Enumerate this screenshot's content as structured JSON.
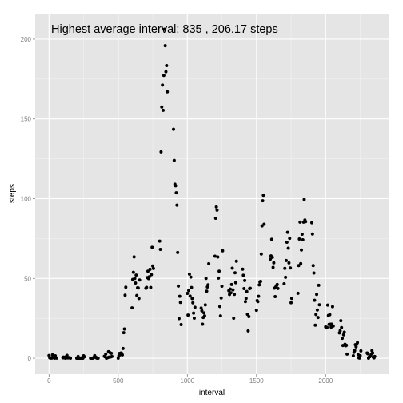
{
  "chart_data": {
    "type": "scatter",
    "xlabel": "interval",
    "ylabel": "steps",
    "annotation": "Highest average interval: 835 , 206.17  steps",
    "xlim": [
      -100,
      2455
    ],
    "ylim": [
      -10,
      216
    ],
    "x_ticks": [
      0,
      500,
      1000,
      1500,
      2000
    ],
    "x_tick_labels": [
      "0",
      "500",
      "1000",
      "1500",
      "2000"
    ],
    "x_minor_ticks": [
      250,
      750,
      1250,
      1750,
      2250
    ],
    "y_ticks": [
      0,
      50,
      100,
      150,
      200
    ],
    "y_tick_labels": [
      "0",
      "50",
      "100",
      "150",
      "200"
    ],
    "y_minor_ticks": [
      25,
      75,
      125,
      175
    ],
    "grid": true,
    "colors": {
      "panel": "#e5e5e5",
      "grid_major": "#ffffff",
      "grid_minor": "#f2f2f2",
      "point": "#000000"
    },
    "points": [
      [
        0,
        1.7
      ],
      [
        5,
        0.3
      ],
      [
        10,
        0.1
      ],
      [
        15,
        0.2
      ],
      [
        20,
        0.1
      ],
      [
        25,
        2.1
      ],
      [
        30,
        0.5
      ],
      [
        35,
        0.9
      ],
      [
        40,
        0
      ],
      [
        45,
        1.5
      ],
      [
        50,
        0.3
      ],
      [
        55,
        0.1
      ],
      [
        100,
        0.3
      ],
      [
        105,
        0.7
      ],
      [
        110,
        0.2
      ],
      [
        115,
        0.3
      ],
      [
        120,
        0
      ],
      [
        125,
        1.1
      ],
      [
        130,
        1.8
      ],
      [
        135,
        0.2
      ],
      [
        140,
        0.2
      ],
      [
        145,
        0.4
      ],
      [
        150,
        0.3
      ],
      [
        155,
        0
      ],
      [
        200,
        0
      ],
      [
        205,
        0
      ],
      [
        210,
        1.1
      ],
      [
        215,
        0
      ],
      [
        220,
        0
      ],
      [
        225,
        0.1
      ],
      [
        230,
        0
      ],
      [
        235,
        0.2
      ],
      [
        240,
        0
      ],
      [
        245,
        0
      ],
      [
        250,
        1.5
      ],
      [
        255,
        0.9
      ],
      [
        300,
        0
      ],
      [
        305,
        0
      ],
      [
        310,
        0
      ],
      [
        315,
        0
      ],
      [
        320,
        0.2
      ],
      [
        325,
        0.6
      ],
      [
        330,
        1.6
      ],
      [
        335,
        0.6
      ],
      [
        340,
        0.5
      ],
      [
        345,
        0.1
      ],
      [
        350,
        0
      ],
      [
        355,
        0
      ],
      [
        400,
        1.2
      ],
      [
        405,
        0.9
      ],
      [
        410,
        2.6
      ],
      [
        415,
        0
      ],
      [
        420,
        0.3
      ],
      [
        425,
        0.4
      ],
      [
        430,
        4.1
      ],
      [
        435,
        0.7
      ],
      [
        440,
        3.5
      ],
      [
        445,
        0.8
      ],
      [
        450,
        3.1
      ],
      [
        455,
        1.1
      ],
      [
        500,
        0
      ],
      [
        505,
        1.5
      ],
      [
        510,
        3
      ],
      [
        515,
        2.2
      ],
      [
        520,
        3.3
      ],
      [
        525,
        3
      ],
      [
        530,
        2.1
      ],
      [
        535,
        6.1
      ],
      [
        540,
        16
      ],
      [
        545,
        18.3
      ],
      [
        550,
        39.5
      ],
      [
        555,
        44.5
      ],
      [
        600,
        31.5
      ],
      [
        605,
        49.3
      ],
      [
        610,
        53.8
      ],
      [
        615,
        63.5
      ],
      [
        620,
        50
      ],
      [
        625,
        47.1
      ],
      [
        630,
        52.1
      ],
      [
        635,
        39.3
      ],
      [
        640,
        44.1
      ],
      [
        645,
        44
      ],
      [
        650,
        37.4
      ],
      [
        655,
        49
      ],
      [
        700,
        43.8
      ],
      [
        705,
        44.4
      ],
      [
        710,
        50.5
      ],
      [
        715,
        54.5
      ],
      [
        720,
        49.9
      ],
      [
        725,
        51
      ],
      [
        730,
        55.7
      ],
      [
        735,
        44.3
      ],
      [
        740,
        52.3
      ],
      [
        745,
        69.5
      ],
      [
        750,
        57.8
      ],
      [
        755,
        56.2
      ],
      [
        800,
        73.4
      ],
      [
        805,
        68.2
      ],
      [
        810,
        129.4
      ],
      [
        815,
        157.5
      ],
      [
        820,
        171.2
      ],
      [
        825,
        155.4
      ],
      [
        830,
        177.3
      ],
      [
        835,
        206.2
      ],
      [
        840,
        195.9
      ],
      [
        845,
        179.6
      ],
      [
        850,
        183.4
      ],
      [
        855,
        167
      ],
      [
        900,
        143.5
      ],
      [
        905,
        124
      ],
      [
        910,
        109.1
      ],
      [
        915,
        108.1
      ],
      [
        920,
        103.7
      ],
      [
        925,
        95.9
      ],
      [
        930,
        66.2
      ],
      [
        935,
        45.2
      ],
      [
        940,
        24.8
      ],
      [
        945,
        38.8
      ],
      [
        950,
        34.98
      ],
      [
        955,
        21.1
      ],
      [
        1000,
        40.6
      ],
      [
        1005,
        27
      ],
      [
        1010,
        42.4
      ],
      [
        1015,
        52.7
      ],
      [
        1020,
        38.9
      ],
      [
        1025,
        50.8
      ],
      [
        1030,
        44.3
      ],
      [
        1035,
        37.4
      ],
      [
        1040,
        34.7
      ],
      [
        1045,
        28.3
      ],
      [
        1050,
        25.1
      ],
      [
        1055,
        31.9
      ],
      [
        1100,
        31.4
      ],
      [
        1105,
        29.7
      ],
      [
        1110,
        21.3
      ],
      [
        1115,
        25.5
      ],
      [
        1120,
        28.4
      ],
      [
        1125,
        26.5
      ],
      [
        1130,
        33.4
      ],
      [
        1135,
        49.98
      ],
      [
        1140,
        42
      ],
      [
        1145,
        44.6
      ],
      [
        1150,
        46
      ],
      [
        1155,
        59.2
      ],
      [
        1200,
        63.9
      ],
      [
        1205,
        87.7
      ],
      [
        1210,
        94.8
      ],
      [
        1215,
        92.8
      ],
      [
        1220,
        63.4
      ],
      [
        1225,
        50.2
      ],
      [
        1230,
        54.5
      ],
      [
        1235,
        32.4
      ],
      [
        1240,
        26.5
      ],
      [
        1245,
        37.7
      ],
      [
        1250,
        45.1
      ],
      [
        1255,
        67.3
      ],
      [
        1300,
        42.3
      ],
      [
        1305,
        39.9
      ],
      [
        1310,
        43.3
      ],
      [
        1315,
        40.98
      ],
      [
        1320,
        46.2
      ],
      [
        1325,
        56.4
      ],
      [
        1330,
        42.8
      ],
      [
        1335,
        25.1
      ],
      [
        1340,
        39.97
      ],
      [
        1345,
        53.5
      ],
      [
        1350,
        47.3
      ],
      [
        1355,
        60.8
      ],
      [
        1400,
        55.8
      ],
      [
        1405,
        51.96
      ],
      [
        1410,
        43.6
      ],
      [
        1415,
        48.7
      ],
      [
        1420,
        35.5
      ],
      [
        1425,
        37.5
      ],
      [
        1430,
        41.8
      ],
      [
        1435,
        27.5
      ],
      [
        1440,
        17.1
      ],
      [
        1445,
        26.1
      ],
      [
        1450,
        43.6
      ],
      [
        1455,
        43.8
      ],
      [
        1500,
        30
      ],
      [
        1505,
        36.1
      ],
      [
        1510,
        35.5
      ],
      [
        1515,
        38.8
      ],
      [
        1520,
        45.96
      ],
      [
        1525,
        47.8
      ],
      [
        1530,
        48.1
      ],
      [
        1535,
        65.3
      ],
      [
        1540,
        82.9
      ],
      [
        1545,
        98.7
      ],
      [
        1550,
        102.1
      ],
      [
        1555,
        83.96
      ],
      [
        1600,
        62.1
      ],
      [
        1605,
        64.1
      ],
      [
        1610,
        74.5
      ],
      [
        1615,
        63.2
      ],
      [
        1620,
        56.9
      ],
      [
        1625,
        59.8
      ],
      [
        1630,
        43.9
      ],
      [
        1635,
        38.6
      ],
      [
        1640,
        44.7
      ],
      [
        1645,
        45.5
      ],
      [
        1650,
        46.2
      ],
      [
        1655,
        43.7
      ],
      [
        1700,
        46.6
      ],
      [
        1705,
        56.3
      ],
      [
        1710,
        50.7
      ],
      [
        1715,
        61.2
      ],
      [
        1720,
        72.7
      ],
      [
        1725,
        78.9
      ],
      [
        1730,
        68.9
      ],
      [
        1735,
        59.7
      ],
      [
        1740,
        75.1
      ],
      [
        1745,
        56.5
      ],
      [
        1750,
        34.8
      ],
      [
        1755,
        37.5
      ],
      [
        1800,
        40.7
      ],
      [
        1805,
        58
      ],
      [
        1810,
        74.7
      ],
      [
        1815,
        85.3
      ],
      [
        1820,
        59.3
      ],
      [
        1825,
        67.8
      ],
      [
        1830,
        77.7
      ],
      [
        1835,
        74.2
      ],
      [
        1840,
        85.3
      ],
      [
        1845,
        99.5
      ],
      [
        1850,
        86.6
      ],
      [
        1855,
        85.6
      ],
      [
        1900,
        84.9
      ],
      [
        1905,
        77.8
      ],
      [
        1910,
        58.04
      ],
      [
        1915,
        53.4
      ],
      [
        1920,
        36.3
      ],
      [
        1925,
        20.7
      ],
      [
        1930,
        27.4
      ],
      [
        1935,
        40
      ],
      [
        1940,
        30.2
      ],
      [
        1945,
        25.5
      ],
      [
        1950,
        45.7
      ],
      [
        1955,
        33.5
      ],
      [
        2000,
        19.6
      ],
      [
        2005,
        19
      ],
      [
        2010,
        19.3
      ],
      [
        2015,
        33.3
      ],
      [
        2020,
        26.8
      ],
      [
        2025,
        21.2
      ],
      [
        2030,
        27.3
      ],
      [
        2035,
        21.3
      ],
      [
        2040,
        19.5
      ],
      [
        2045,
        21.3
      ],
      [
        2050,
        32.3
      ],
      [
        2055,
        20.2
      ],
      [
        2100,
        15.9
      ],
      [
        2105,
        17.2
      ],
      [
        2110,
        23.5
      ],
      [
        2115,
        19.2
      ],
      [
        2120,
        12.5
      ],
      [
        2125,
        8
      ],
      [
        2130,
        14.7
      ],
      [
        2135,
        16.3
      ],
      [
        2140,
        8.7
      ],
      [
        2145,
        7.8
      ],
      [
        2150,
        8.1
      ],
      [
        2155,
        2.6
      ],
      [
        2200,
        1.5
      ],
      [
        2205,
        3.7
      ],
      [
        2210,
        4.8
      ],
      [
        2215,
        8.5
      ],
      [
        2220,
        7.1
      ],
      [
        2225,
        8.7
      ],
      [
        2230,
        9.8
      ],
      [
        2235,
        2.2
      ],
      [
        2240,
        0.3
      ],
      [
        2245,
        0.1
      ],
      [
        2250,
        1.6
      ],
      [
        2255,
        4.6
      ],
      [
        2300,
        3.3
      ],
      [
        2305,
        2.8
      ],
      [
        2310,
        0
      ],
      [
        2315,
        0.8
      ],
      [
        2320,
        0.96
      ],
      [
        2325,
        1.6
      ],
      [
        2330,
        2.6
      ],
      [
        2335,
        4.7
      ],
      [
        2340,
        3.3
      ],
      [
        2345,
        0.6
      ],
      [
        2350,
        0.2
      ],
      [
        2355,
        1.1
      ]
    ]
  }
}
